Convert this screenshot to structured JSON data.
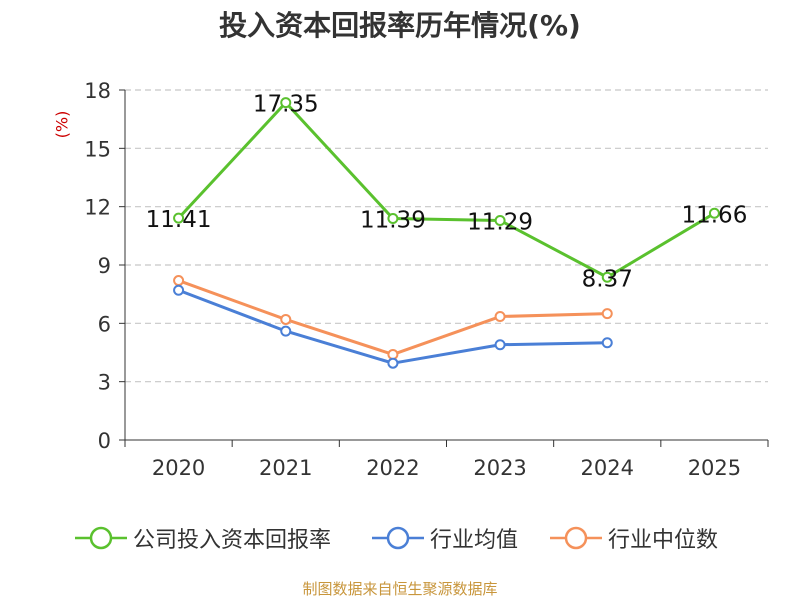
{
  "chart_data": {
    "type": "line",
    "title": "投入资本回报率历年情况(%)",
    "ylabel": "(%)",
    "xlabel": "",
    "categories": [
      "2020",
      "2021",
      "2022",
      "2023",
      "2024",
      "2025"
    ],
    "ylim": [
      0,
      18
    ],
    "yticks": [
      0,
      3,
      6,
      9,
      12,
      15,
      18
    ],
    "grid": true,
    "legend_position": "bottom",
    "series": [
      {
        "name": "公司投入资本回报率",
        "color": "#5ac12e",
        "values": [
          11.41,
          17.35,
          11.39,
          11.29,
          8.37,
          11.66
        ],
        "labels": [
          "11.41",
          "17.35",
          "11.39",
          "11.29",
          "8.37",
          "11.66"
        ]
      },
      {
        "name": "行业均值",
        "color": "#4a7fd6",
        "values": [
          7.7,
          5.6,
          3.95,
          4.9,
          5.0,
          null
        ]
      },
      {
        "name": "行业中位数",
        "color": "#f5915a",
        "values": [
          8.2,
          6.2,
          4.4,
          6.35,
          6.5,
          null
        ]
      }
    ]
  },
  "source": "制图数据来自恒生聚源数据库"
}
